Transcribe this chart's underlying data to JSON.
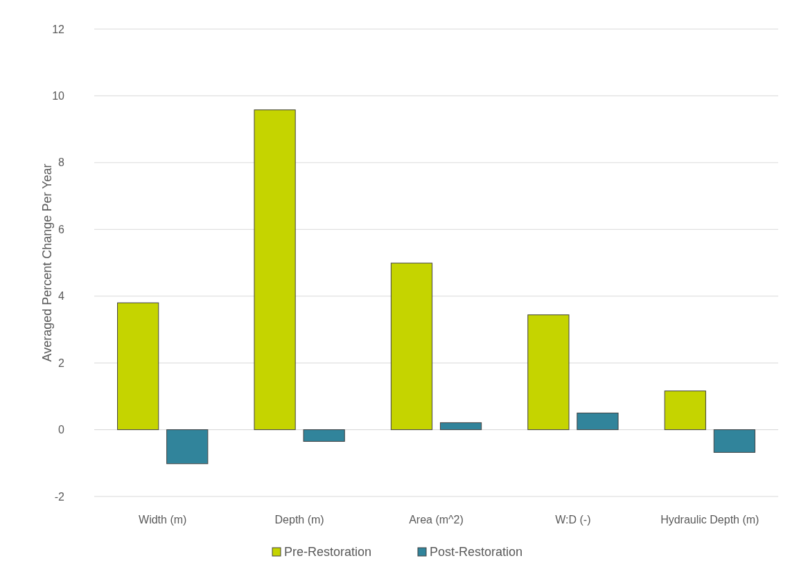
{
  "chart_data": {
    "type": "bar",
    "ylabel": "Averaged Percent Change Per Year",
    "categories": [
      "Width (m)",
      "Depth (m)",
      "Area (m^2)",
      "W:D (-)",
      "Hydraulic Depth (m)"
    ],
    "series": [
      {
        "name": "Pre-Restoration",
        "color": "#c5d400",
        "values": [
          3.8,
          9.58,
          4.99,
          3.44,
          1.16
        ]
      },
      {
        "name": "Post-Restoration",
        "color": "#31849b",
        "values": [
          -1.02,
          -0.35,
          0.21,
          0.5,
          -0.68
        ]
      }
    ],
    "ylim": [
      -2,
      12
    ],
    "yticks": [
      -2,
      0,
      2,
      4,
      6,
      8,
      10,
      12
    ],
    "grid": "y",
    "legend": "bottom"
  }
}
